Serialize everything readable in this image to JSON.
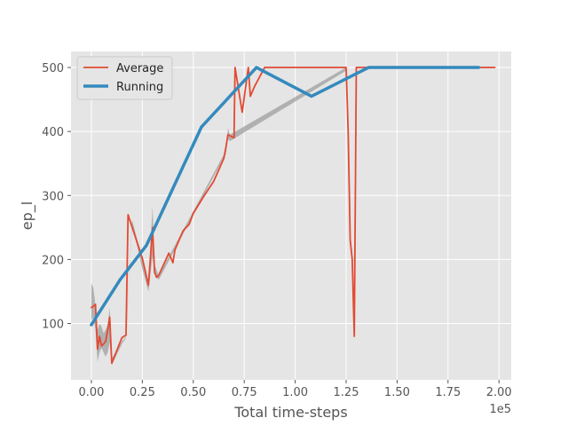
{
  "chart_data": {
    "type": "line",
    "xlabel": "Total time-steps",
    "ylabel": "ep_l",
    "x_scale_label": "1e5",
    "xlim": [
      -0.1,
      2.06
    ],
    "ylim": [
      12,
      525
    ],
    "x_ticks": [
      0.0,
      0.25,
      0.5,
      0.75,
      1.0,
      1.25,
      1.5,
      1.75,
      2.0
    ],
    "x_tick_labels": [
      "0.00",
      "0.25",
      "0.50",
      "0.75",
      "1.00",
      "1.25",
      "1.50",
      "1.75",
      "2.00"
    ],
    "y_ticks": [
      100,
      200,
      300,
      400,
      500
    ],
    "y_tick_labels": [
      "100",
      "200",
      "300",
      "400",
      "500"
    ],
    "grid": true,
    "legend_position": "top-left",
    "colors": {
      "background": "#e5e5e5",
      "grid": "#ffffff",
      "band": "#9a9a9a"
    },
    "band": {
      "x": [
        0,
        0.01,
        0.02,
        0.03,
        0.04,
        0.05,
        0.06,
        0.07,
        0.08,
        0.09,
        0.1,
        0.15,
        0.17,
        0.2,
        0.25,
        0.28,
        0.3,
        0.31,
        0.33,
        0.66,
        0.67,
        0.68,
        1.25,
        1.26,
        1.27,
        1.28,
        1.29
      ],
      "upper": [
        163,
        155,
        128,
        90,
        100,
        95,
        85,
        90,
        98,
        125,
        45,
        72,
        80,
        262,
        200,
        165,
        283,
        192,
        175,
        370,
        405,
        395,
        500,
        400,
        240,
        210,
        92
      ],
      "lower": [
        105,
        110,
        90,
        40,
        55,
        62,
        55,
        48,
        55,
        70,
        35,
        68,
        78,
        255,
        185,
        150,
        205,
        180,
        168,
        365,
        388,
        385,
        495,
        350,
        220,
        195,
        78
      ]
    },
    "series": [
      {
        "name": "Average",
        "color": "#e24a33",
        "width": 1.8,
        "x": [
          0,
          0.01,
          0.02,
          0.03,
          0.04,
          0.05,
          0.06,
          0.07,
          0.08,
          0.09,
          0.1,
          0.15,
          0.17,
          0.18,
          0.25,
          0.28,
          0.3,
          0.31,
          0.32,
          0.33,
          0.38,
          0.4,
          0.41,
          0.45,
          0.48,
          0.5,
          0.55,
          0.6,
          0.65,
          0.66,
          0.67,
          0.7,
          0.705,
          0.74,
          0.77,
          0.78,
          0.8,
          0.85,
          0.87,
          1.0,
          1.25,
          1.26,
          1.27,
          1.28,
          1.29,
          1.3,
          1.31,
          1.33,
          1.9,
          1.98
        ],
        "y": [
          125,
          127,
          130,
          60,
          80,
          65,
          68,
          72,
          90,
          110,
          38,
          78,
          82,
          270,
          202,
          160,
          250,
          180,
          172,
          175,
          210,
          195,
          215,
          245,
          255,
          272,
          298,
          322,
          358,
          375,
          395,
          390,
          500,
          430,
          500,
          455,
          470,
          500,
          500,
          500,
          500,
          400,
          230,
          200,
          80,
          500,
          500,
          500,
          500,
          500
        ]
      },
      {
        "name": "Running",
        "color": "#348abd",
        "width": 3.5,
        "x": [
          0,
          0.14,
          0.27,
          0.54,
          0.81,
          1.08,
          1.36,
          1.9
        ],
        "y": [
          98,
          168,
          222,
          407,
          500,
          455,
          500,
          500
        ]
      }
    ]
  }
}
